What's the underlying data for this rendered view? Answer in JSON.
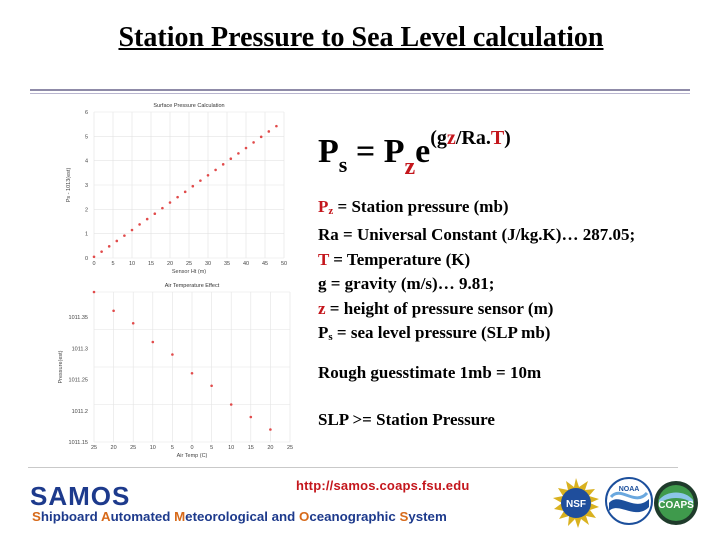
{
  "slide": {
    "title": "Station Pressure to Sea Level calculation"
  },
  "formula": {
    "p": "P",
    "s": "s",
    "eq": " = ",
    "p2": "P",
    "z": "z",
    "e": "e",
    "open": "(g",
    "zvar": "z",
    "mid": "/Ra.",
    "tvar": "T",
    "close": ")"
  },
  "definitions": {
    "pz_p": "P",
    "pz_sub": "z",
    "pz_text": " = Station pressure (mb)",
    "ra": "Ra = Universal Constant (J/kg.K)… 287.05;",
    "t_var": "T",
    "t_text": " = Temperature (K)",
    "g": "g = gravity (m/s)… 9.81;",
    "z_var": "z",
    "z_text": " = height of pressure sensor (m)",
    "ps_p": "P",
    "ps_sub": "s",
    "ps_text": " = sea level pressure (SLP mb)"
  },
  "notes": {
    "estimate": "Rough guesstimate 1mb = 10m",
    "compare": "SLP >= Station Pressure"
  },
  "footer": {
    "url": "http://samos.coaps.fsu.edu",
    "brand": "SAMOS",
    "sub_s": "S",
    "sub_1": "hipboard ",
    "sub_a": "A",
    "sub_2": "utomated ",
    "sub_m": "M",
    "sub_3": "eteorological and ",
    "sub_o": "O",
    "sub_4": "ceanographic ",
    "sub_s2": "S",
    "sub_5": "ystem",
    "logo_nsf": "NSF",
    "logo_noaa": "NOAA",
    "logo_coaps": "COAPS"
  },
  "chart_data": [
    {
      "type": "scatter",
      "title": "Surface Pressure Calculation",
      "xlabel": "Sensor Ht (m)",
      "ylabel": "Ps - 1013(est)",
      "xlim": [
        0,
        50
      ],
      "ylim": [
        0,
        6
      ],
      "x_ticks": [
        "0",
        "5",
        "10",
        "15",
        "20",
        "25",
        "30",
        "35",
        "40",
        "45",
        "50"
      ],
      "y_ticks": [
        "0",
        "1",
        "2",
        "3",
        "4",
        "5",
        "6"
      ],
      "grid": true,
      "color": "#e14b4b",
      "x": [
        0,
        2,
        4,
        6,
        8,
        10,
        12,
        14,
        16,
        18,
        20,
        22,
        24,
        26,
        28,
        30,
        32,
        34,
        36,
        38,
        40,
        42,
        44,
        46,
        48
      ],
      "y": [
        0.05,
        0.26,
        0.48,
        0.7,
        0.92,
        1.15,
        1.38,
        1.6,
        1.82,
        2.05,
        2.28,
        2.5,
        2.72,
        2.95,
        3.18,
        3.4,
        3.62,
        3.85,
        4.08,
        4.3,
        4.52,
        4.75,
        4.98,
        5.2,
        5.42
      ]
    },
    {
      "type": "scatter",
      "title": "Air Temperature Effect",
      "xlabel": "Air Temp (C)",
      "ylabel": "Pressure(est)",
      "xlim": [
        -25,
        25
      ],
      "ylim": [
        1011.15,
        1011.39
      ],
      "x_ticks": [
        "25",
        "20",
        "25",
        "10",
        "5",
        "0",
        "5",
        "10",
        "15",
        "20",
        "25"
      ],
      "y_ticks": [
        "1011.35",
        "1011.3",
        "1011.25",
        "1011.2",
        "1011.15"
      ],
      "grid": true,
      "color": "#e14b4b",
      "x": [
        -25,
        -20,
        -15,
        -10,
        -5,
        0,
        5,
        10,
        15,
        20
      ],
      "y": [
        1011.39,
        1011.36,
        1011.34,
        1011.31,
        1011.29,
        1011.26,
        1011.24,
        1011.21,
        1011.19,
        1011.17
      ]
    }
  ]
}
